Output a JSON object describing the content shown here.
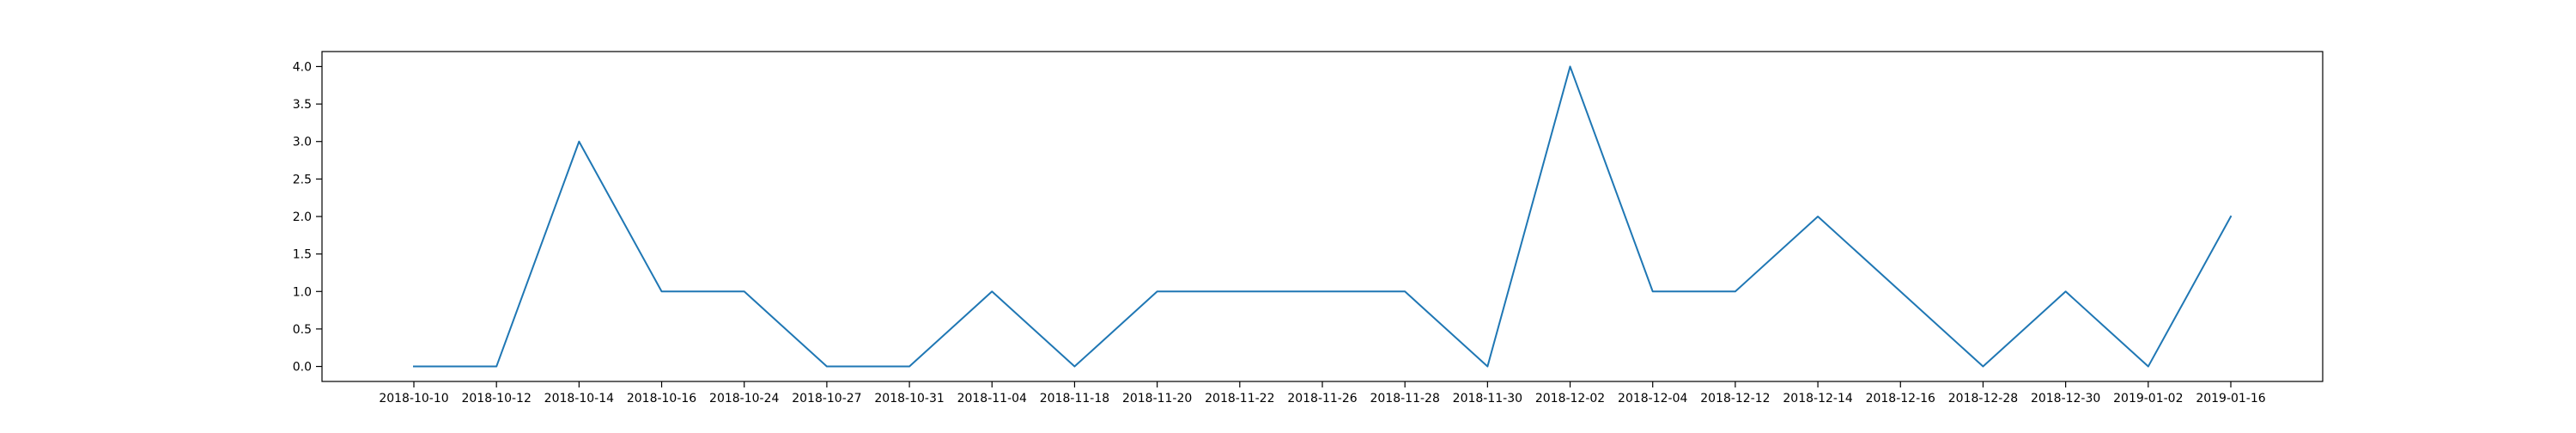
{
  "chart_data": {
    "type": "line",
    "title": "",
    "xlabel": "",
    "ylabel": "",
    "categories": [
      "2018-10-10",
      "2018-10-12",
      "2018-10-14",
      "2018-10-16",
      "2018-10-24",
      "2018-10-27",
      "2018-10-31",
      "2018-11-04",
      "2018-11-18",
      "2018-11-20",
      "2018-11-22",
      "2018-11-26",
      "2018-11-28",
      "2018-11-30",
      "2018-12-02",
      "2018-12-04",
      "2018-12-12",
      "2018-12-14",
      "2018-12-16",
      "2018-12-28",
      "2018-12-30",
      "2019-01-02",
      "2019-01-16"
    ],
    "series": [
      {
        "values": [
          0,
          0,
          3,
          1,
          1,
          0,
          0,
          1,
          0,
          1,
          1,
          1,
          1,
          0,
          4,
          1,
          1,
          2,
          1,
          0,
          1,
          0,
          2
        ],
        "color": "#1f77b4"
      }
    ],
    "y_ticks": [
      "0.0",
      "0.5",
      "1.0",
      "1.5",
      "2.0",
      "2.5",
      "3.0",
      "3.5",
      "4.0"
    ],
    "ylim": [
      -0.2,
      4.2
    ],
    "grid": false,
    "legend": "none"
  }
}
